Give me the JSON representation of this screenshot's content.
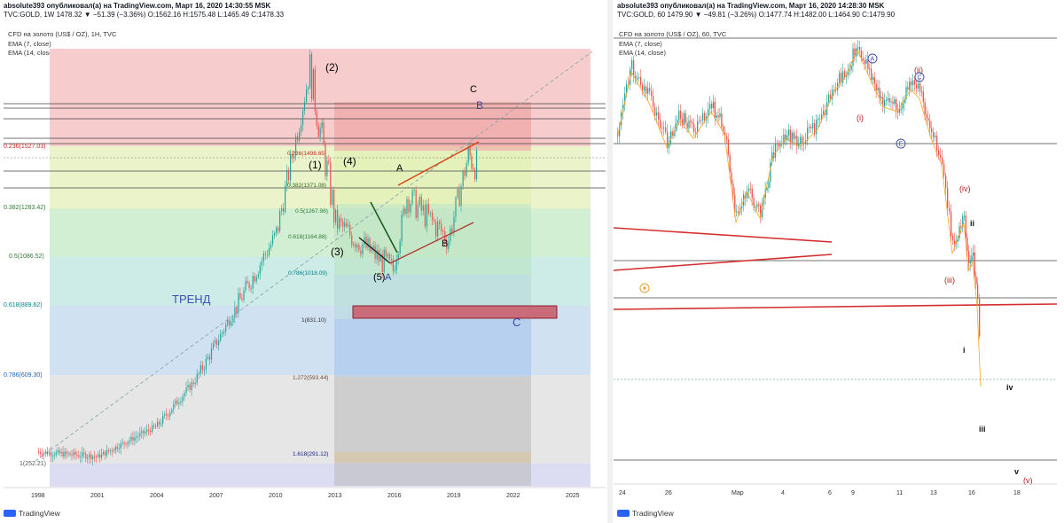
{
  "left": {
    "header_line1": "absolute393 опубликовал(а) на TradingView.com, Март 16, 2020 14:30:55 MSK",
    "header_line2": "TVC:GOLD, 1W  1478.32 ▼ −51.39 (−3.36%) O:1562.16 H:1575.48 L:1465.49 C:1478.33",
    "title": "CFD на золото (US$ / OZ), 1H, TVC",
    "ema1": "EMA (7, close)",
    "ema2": "EMA (14, close)",
    "trend_label": "ТРЕНД",
    "fib_levels": [
      {
        "label": "0.236(1527.03)",
        "value": 1527.03
      },
      {
        "label": "0.382(1283.42)",
        "value": 1283.42
      },
      {
        "label": "0.5(1086.52)",
        "value": 1086.52
      },
      {
        "label": "0.618(889.62)",
        "value": 889.62
      },
      {
        "label": "0.786(609.30)",
        "value": 609.3
      },
      {
        "label": "1(252.21)",
        "value": 252.21
      }
    ],
    "fib_levels_inner": [
      {
        "label": "0.236(1498.65)"
      },
      {
        "label": "0.382(1371.08)"
      },
      {
        "label": "0.5(1267.98)"
      },
      {
        "label": "0.618(1164.88)"
      },
      {
        "label": "0.786(1018.09)"
      },
      {
        "label": "1(831.10)"
      },
      {
        "label": "1.272(593.44)"
      },
      {
        "label": "1.618(291.12)"
      }
    ],
    "wave_labels": [
      "(1)",
      "(2)",
      "(3)",
      "(4)",
      "(5)",
      "A",
      "B",
      "C",
      "A",
      "B",
      "C"
    ],
    "colors": {
      "red_zone": "#f4c7c7",
      "green_zone": "#d6efd6",
      "blue_zone": "#c7d9f0",
      "gray_zone": "#d9d9d9",
      "candle_up": "#26a69a",
      "candle_down": "#ef5350"
    },
    "chart_data": {
      "type": "candlestick",
      "x_ticks": [
        "1998",
        "2001",
        "2004",
        "2007",
        "2010",
        "2013",
        "2016",
        "2019",
        "2022",
        "2025"
      ],
      "approx_close_path": [
        {
          "x": 1998,
          "y": 290
        },
        {
          "x": 2001,
          "y": 270
        },
        {
          "x": 2004,
          "y": 400
        },
        {
          "x": 2006,
          "y": 600
        },
        {
          "x": 2008,
          "y": 900
        },
        {
          "x": 2010,
          "y": 1200
        },
        {
          "x": 2011.7,
          "y": 1890
        },
        {
          "x": 2013,
          "y": 1250
        },
        {
          "x": 2015.9,
          "y": 1050
        },
        {
          "x": 2016.6,
          "y": 1360
        },
        {
          "x": 2018.7,
          "y": 1180
        },
        {
          "x": 2019.7,
          "y": 1530
        },
        {
          "x": 2020.2,
          "y": 1478
        }
      ]
    }
  },
  "right": {
    "header_line1": "absolute393 опубликовал(а) на TradingView.com, Март 16, 2020 14:28:30 MSK",
    "header_line2": "TVC:GOLD, 60  1479.90 ▼ −49.81 (−3.26%) O:1477.74 H:1482.00 L:1464.90 C:1479.90",
    "title": "CFD на золото (US$ / OZ), 60, TVC",
    "ema1": "EMA (7, close)",
    "ema2": "EMA (14, close)",
    "wave_labels": [
      "(i)",
      "(ii)",
      "(iii)",
      "(iv)",
      "(v)",
      "i",
      "ii",
      "iii",
      "iv",
      "v",
      "A",
      "B",
      "C",
      "E"
    ],
    "x_ticks": [
      "24",
      "26",
      "Мар",
      "4",
      "6",
      "9",
      "11",
      "13",
      "16",
      "18"
    ]
  },
  "brand": "TradingView"
}
